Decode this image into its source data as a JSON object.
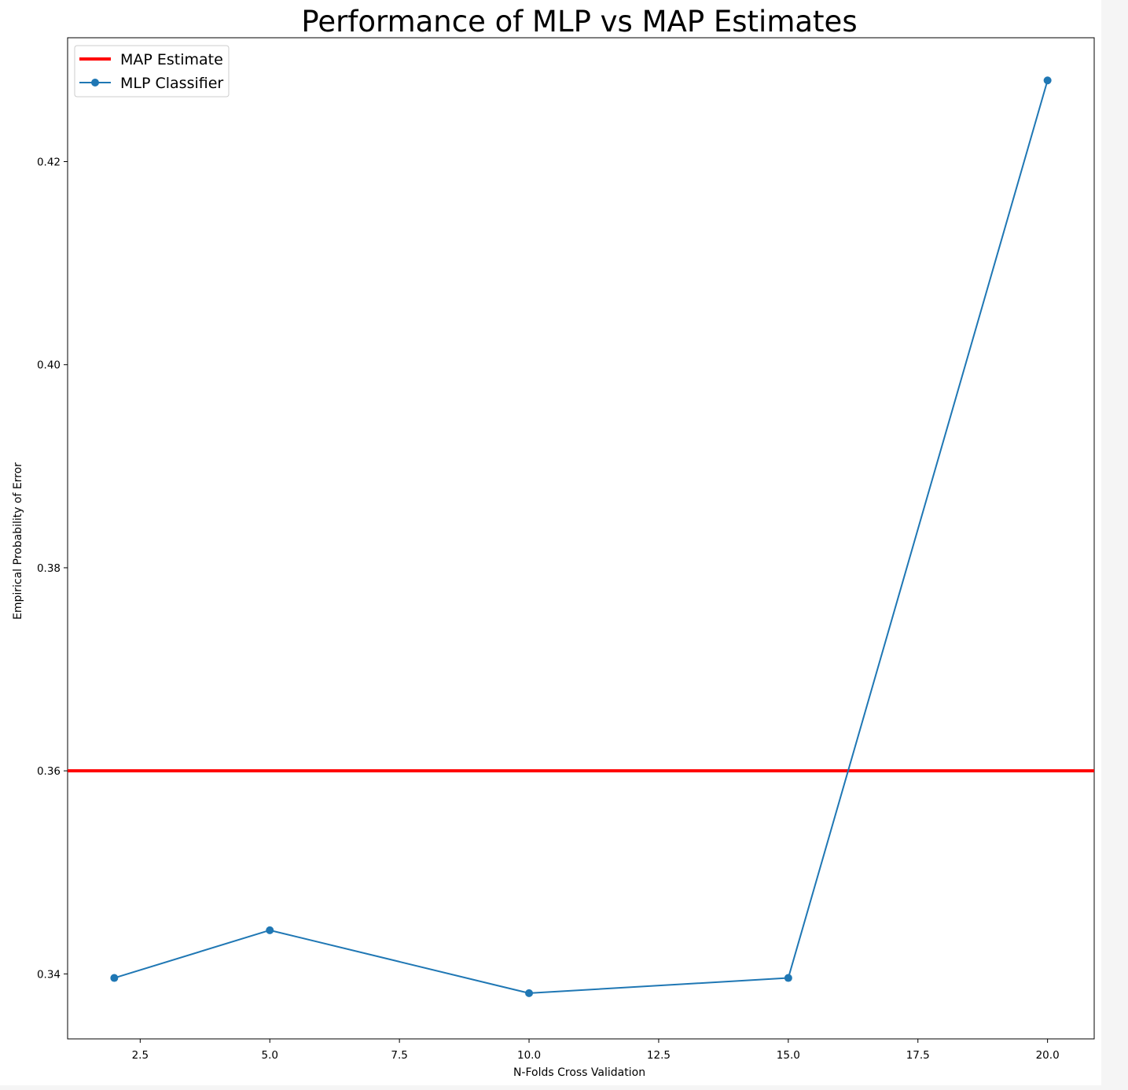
{
  "chart_data": {
    "type": "line",
    "title": "Performance of MLP vs MAP Estimates",
    "xlabel": "N-Folds Cross Validation",
    "ylabel": "Empirical Probability of Error",
    "xlim": [
      1.1,
      20.9
    ],
    "ylim": [
      0.3336,
      0.4322
    ],
    "xticks": [
      2.5,
      5.0,
      7.5,
      10.0,
      12.5,
      15.0,
      17.5,
      20.0
    ],
    "xtick_labels": [
      "2.5",
      "5.0",
      "7.5",
      "10.0",
      "12.5",
      "15.0",
      "17.5",
      "20.0"
    ],
    "yticks": [
      0.34,
      0.36,
      0.38,
      0.4,
      0.42
    ],
    "ytick_labels": [
      "0.34",
      "0.36",
      "0.38",
      "0.40",
      "0.42"
    ],
    "grid": false,
    "legend_position": "upper-left",
    "series": [
      {
        "name": "MAP Estimate",
        "kind": "hline",
        "y": 0.36,
        "color": "#ff0000"
      },
      {
        "name": "MLP Classifier",
        "kind": "line-markers",
        "x": [
          2,
          5,
          10,
          15,
          20
        ],
        "y": [
          0.3396,
          0.3443,
          0.3381,
          0.3396,
          0.428
        ],
        "color": "#1f77b4"
      }
    ]
  }
}
